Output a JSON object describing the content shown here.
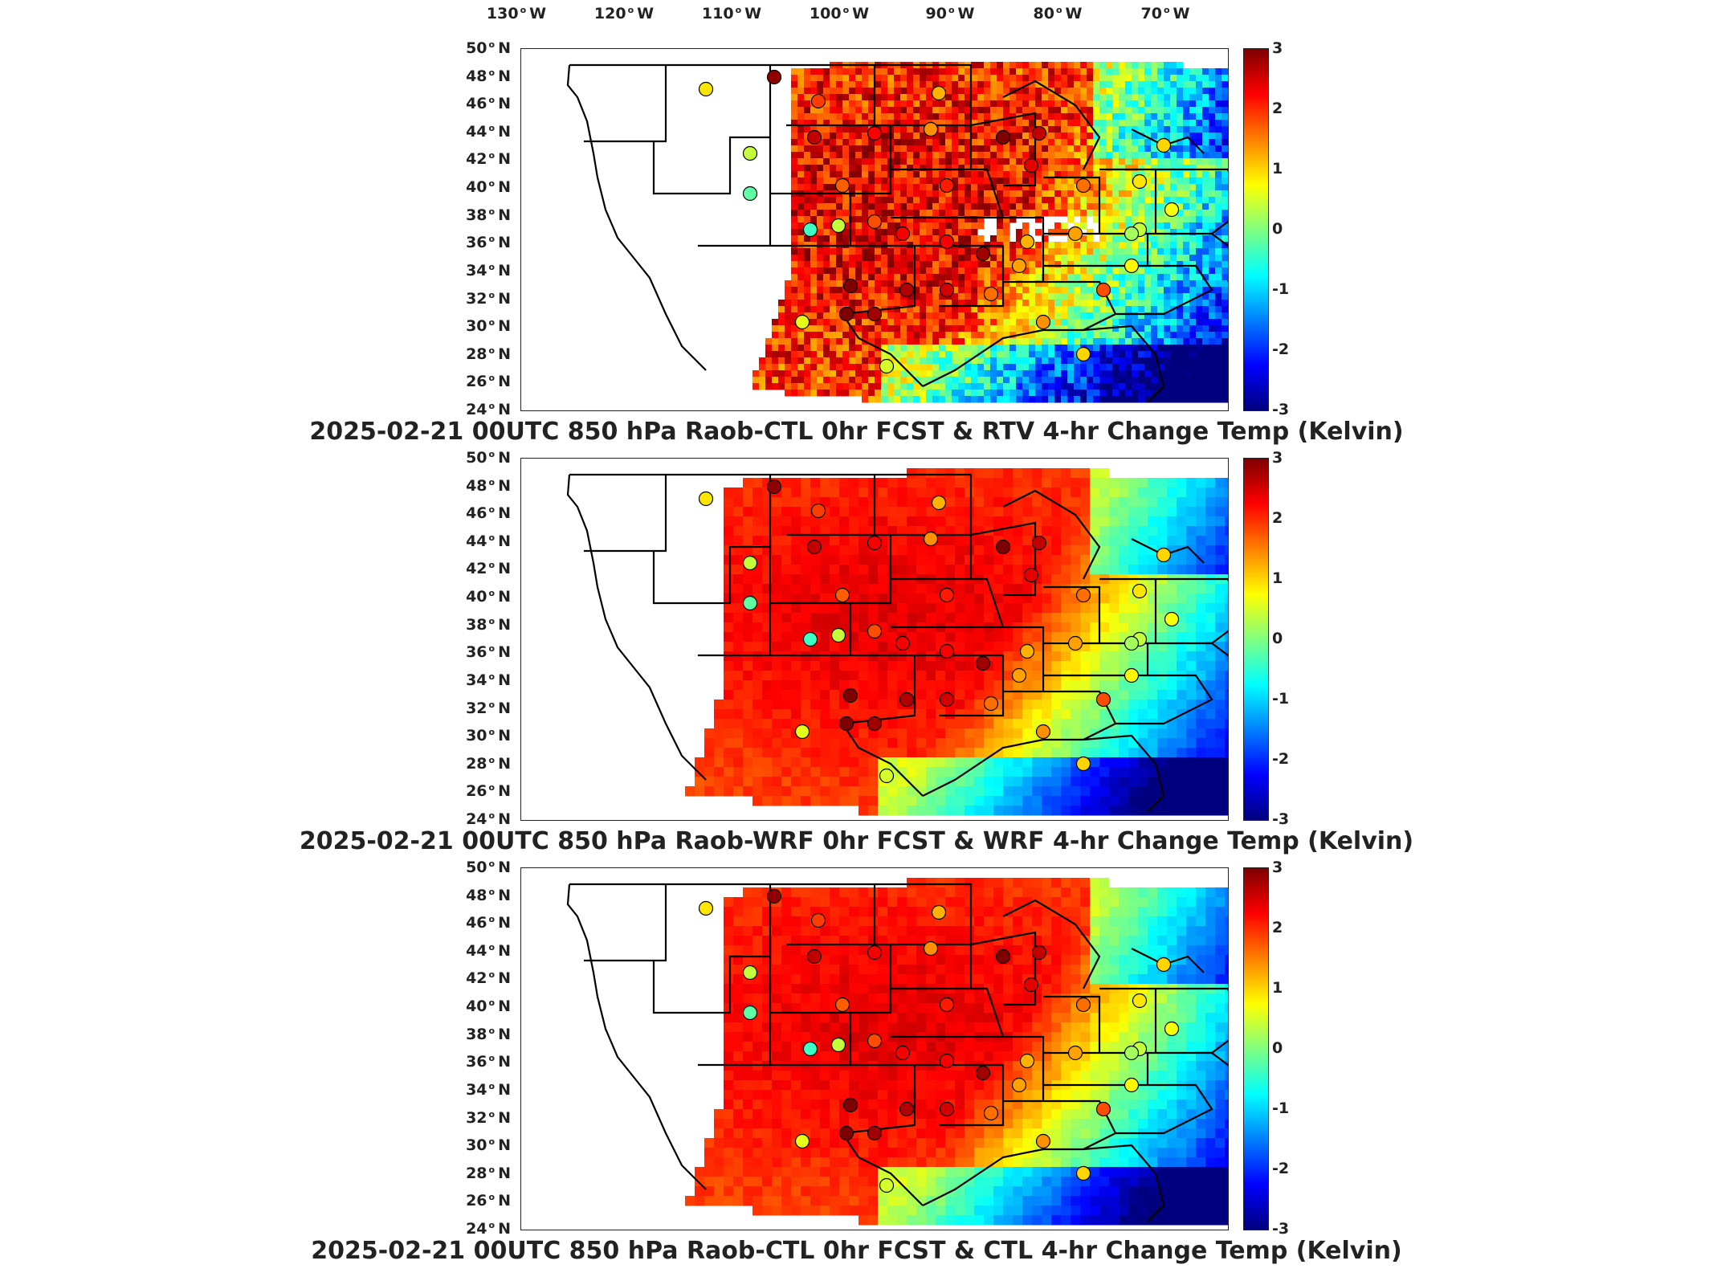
{
  "longitude_labels": [
    "130",
    "120",
    "110",
    "100",
    "90",
    "80",
    "70"
  ],
  "longitude_suffix": "W",
  "latitude_labels": [
    "50",
    "48",
    "46",
    "44",
    "42",
    "40",
    "38",
    "36",
    "34",
    "32",
    "30",
    "28",
    "26",
    "24"
  ],
  "latitude_suffix": "N",
  "colorbar": {
    "ticks": [
      "3",
      "2",
      "1",
      "0",
      "-1",
      "-2",
      "-3"
    ],
    "range": [
      -3,
      3
    ],
    "colormap": [
      "#00007f",
      "#0000ff",
      "#0080ff",
      "#00ffff",
      "#80ff80",
      "#ffff00",
      "#ff8000",
      "#ff0000",
      "#7f0000"
    ]
  },
  "colors": {
    "land_outline": "#000000",
    "ocean_cold": "#0010c8",
    "no_data": "#ffffff"
  },
  "panels": [
    {
      "caption": "2025-02-21 00UTC 850 hPa Raob-CTL 0hr FCST & RTV 4-hr Change Temp (Kelvin)",
      "field_style": "speckled"
    },
    {
      "caption": "2025-02-21 00UTC 850 hPa Raob-WRF 0hr FCST & WRF 4-hr Change Temp (Kelvin)",
      "field_style": "smooth"
    },
    {
      "caption": "2025-02-21 00UTC 850 hPa Raob-CTL 0hr FCST & CTL 4-hr Change Temp (Kelvin)",
      "field_style": "smooth"
    }
  ]
}
